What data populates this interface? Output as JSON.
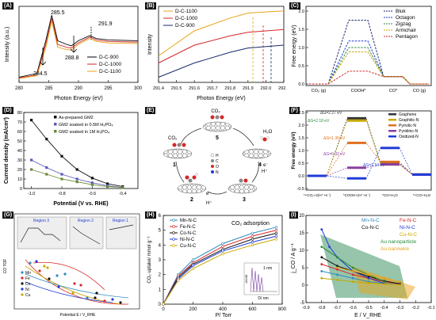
{
  "panels": [
    {
      "tag": "(A)"
    },
    {
      "tag": "(B)"
    },
    {
      "tag": "(C)"
    },
    {
      "tag": "(D)"
    },
    {
      "tag": "(E)"
    },
    {
      "tag": "(F)"
    },
    {
      "tag": "(G)"
    },
    {
      "tag": "(H)"
    },
    {
      "tag": "(I)"
    }
  ],
  "colors": {
    "black": "#000000",
    "red": "#d62728",
    "orange": "#e8a317",
    "blue": "#1f3bd6",
    "navy": "#1a2a6c",
    "purple": "#7a3fa0",
    "green": "#2a8a3a",
    "teal": "#2e8b57",
    "gold": "#c8a800"
  },
  "chart_data": [
    {
      "panel": "A",
      "type": "line",
      "xlabel": "Photon Energy (eV)",
      "ylabel": "Intensity (a.u.)",
      "xlim": [
        280,
        300
      ],
      "xticks": [
        280,
        285,
        290,
        295,
        300
      ],
      "series": [
        {
          "name": "D-C-900",
          "color": "#000000",
          "x": [
            280,
            283,
            284.5,
            285.5,
            286.5,
            288,
            288.8,
            290,
            291.9,
            293,
            295,
            300
          ],
          "y": [
            0.05,
            0.1,
            0.55,
            0.9,
            0.55,
            0.5,
            0.48,
            0.55,
            0.62,
            0.58,
            0.56,
            0.55
          ]
        },
        {
          "name": "D-C-1000",
          "color": "#d62728",
          "x": [
            280,
            283,
            284.5,
            285.5,
            286.5,
            288,
            288.8,
            290,
            291.9,
            293,
            295,
            300
          ],
          "y": [
            0.04,
            0.08,
            0.5,
            0.86,
            0.5,
            0.46,
            0.45,
            0.52,
            0.6,
            0.56,
            0.54,
            0.53
          ]
        },
        {
          "name": "D-C-1100",
          "color": "#e8a317",
          "x": [
            280,
            283,
            284.5,
            285.5,
            286.5,
            288,
            288.8,
            290,
            291.9,
            293,
            295,
            300
          ],
          "y": [
            0.03,
            0.07,
            0.45,
            0.82,
            0.46,
            0.43,
            0.42,
            0.5,
            0.58,
            0.54,
            0.52,
            0.51
          ]
        }
      ],
      "annotations": [
        "285.5",
        "284.5",
        "288.8",
        "291.9"
      ]
    },
    {
      "panel": "B",
      "type": "line",
      "xlabel": "Photon Energy (eV)",
      "ylabel": "Intensity",
      "xlim": [
        291.4,
        292.1
      ],
      "xticks": [
        "291.4",
        "291.5",
        "291.6",
        "291.7",
        "291.8",
        "291.9",
        "292.0",
        "292.1"
      ],
      "series": [
        {
          "name": "D-C-1100",
          "color": "#e8a317",
          "x": [
            291.4,
            291.6,
            291.8,
            291.9,
            292.1
          ],
          "y": [
            0.35,
            0.7,
            0.88,
            0.95,
            0.98
          ]
        },
        {
          "name": "D-C-1000",
          "color": "#d62728",
          "x": [
            291.4,
            291.6,
            291.8,
            291.9,
            292.1
          ],
          "y": [
            0.25,
            0.5,
            0.63,
            0.68,
            0.72
          ]
        },
        {
          "name": "D-C-900",
          "color": "#1a2a6c",
          "x": [
            291.4,
            291.6,
            291.8,
            291.9,
            292.1
          ],
          "y": [
            0.05,
            0.25,
            0.4,
            0.46,
            0.5
          ]
        }
      ]
    },
    {
      "panel": "C",
      "type": "line",
      "ylabel": "Free energy (eV)",
      "ylim": [
        0,
        2.0
      ],
      "yticks": [
        0,
        0.5,
        1.0,
        1.5,
        2.0
      ],
      "categories": [
        "CO₂ (g)",
        "COOH*",
        "CO*",
        "CO (g)"
      ],
      "series": [
        {
          "name": "Bluk",
          "color": "#1a2a6c",
          "values": [
            0,
            1.75,
            0.2,
            0
          ]
        },
        {
          "name": "Octagon",
          "color": "#1f3bd6",
          "values": [
            0,
            1.18,
            0.2,
            0
          ]
        },
        {
          "name": "Zigzag",
          "color": "#2a8a3a",
          "values": [
            0,
            1.0,
            0.2,
            0
          ]
        },
        {
          "name": "Armchair",
          "color": "#c8a800",
          "values": [
            0,
            0.88,
            0.2,
            0
          ]
        },
        {
          "name": "Pentagon",
          "color": "#d62728",
          "values": [
            0,
            0.35,
            0.2,
            0
          ]
        }
      ]
    },
    {
      "panel": "D",
      "type": "line",
      "xlabel": "Potential (V vs. RHE)",
      "ylabel": "Current density (mA/cm²)",
      "xlim": [
        -1.05,
        -0.3
      ],
      "ylim": [
        0,
        80
      ],
      "xticks": [
        "-1.0",
        "-0.8",
        "-0.6",
        "-0.4"
      ],
      "yticks": [
        0,
        10,
        20,
        30,
        40,
        50,
        60,
        70,
        80
      ],
      "series": [
        {
          "name": "As-prepared GM2",
          "color": "#111111",
          "x": [
            -1.0,
            -0.9,
            -0.8,
            -0.7,
            -0.6,
            -0.5,
            -0.4
          ],
          "y": [
            72,
            52,
            34,
            20,
            11,
            5,
            2
          ]
        },
        {
          "name": "GM2 soaked in 0.5M H₃PO₄",
          "color": "#5b5bb8",
          "x": [
            -1.0,
            -0.9,
            -0.8,
            -0.7,
            -0.6,
            -0.5,
            -0.4
          ],
          "y": [
            30,
            22,
            15,
            10,
            6,
            3,
            1
          ]
        },
        {
          "name": "GM2 soaked in 1M H₃PO₄",
          "color": "#6a8a3a",
          "x": [
            -1.0,
            -0.9,
            -0.8,
            -0.7,
            -0.6,
            -0.5,
            -0.4
          ],
          "y": [
            20,
            15,
            10,
            7,
            4,
            2,
            1
          ]
        }
      ]
    },
    {
      "panel": "F",
      "type": "line",
      "ylabel": "Free energy (eV)",
      "ylim": [
        -0.5,
        2.5
      ],
      "yticks": [
        -0.5,
        0,
        0.5,
        1.0,
        1.5,
        2.0,
        2.5
      ],
      "categories": [
        "*+CO₂+2(H⁺+e⁻)",
        "*COOH+(H⁺+e⁻)",
        "*CO+H₂O",
        "*+CO+H₂O"
      ],
      "series": [
        {
          "name": "Graphene",
          "color": "#333333",
          "values": [
            0,
            2.27,
            0.5,
            0.05
          ]
        },
        {
          "name": "Graphitic-N",
          "color": "#c8a800",
          "values": [
            0,
            2.18,
            0.45,
            0.05
          ]
        },
        {
          "name": "Pyrrolic-N",
          "color": "#e07020",
          "values": [
            0,
            1.3,
            0.55,
            0.05
          ]
        },
        {
          "name": "Pyridinic-N",
          "color": "#8a3fa0",
          "values": [
            0,
            0.32,
            0.45,
            0.05
          ]
        },
        {
          "name": "Oxidized-N",
          "color": "#1f3bd6",
          "values": [
            0,
            -0.1,
            1.1,
            0.05
          ]
        }
      ],
      "annotations": [
        "ΔG=2.27 eV",
        "ΔG=2.18 eV",
        "ΔG=1.30 eV",
        "ΔG=0.32 eV",
        "ΔG=1.10 eV"
      ]
    },
    {
      "panel": "G",
      "type": "scatter",
      "xlabel": "Potential E / V_RHE",
      "ylabel": "CO TOF",
      "series": [
        {
          "name": "Mn"
        },
        {
          "name": "Fe"
        },
        {
          "name": "Co"
        },
        {
          "name": "Ni"
        },
        {
          "name": "Cu"
        }
      ],
      "annotations": [
        "Region 1",
        "Region 2",
        "Region 3"
      ]
    },
    {
      "panel": "H",
      "type": "line",
      "title": "CO₂ adsorption",
      "xlabel": "P/ Torr",
      "ylabel": "CO₂ uptake/ mmol g⁻¹",
      "xlim": [
        0,
        800
      ],
      "ylim": [
        0,
        6
      ],
      "xticks": [
        0,
        200,
        400,
        600,
        800
      ],
      "yticks": [
        0,
        1,
        2,
        3,
        4,
        5,
        6
      ],
      "series": [
        {
          "name": "Mn-N-C",
          "color": "#2e8bc0",
          "x": [
            0,
            100,
            200,
            400,
            600,
            760
          ],
          "y": [
            0,
            2.0,
            3.0,
            4.1,
            4.8,
            5.2
          ]
        },
        {
          "name": "Fe-N-C",
          "color": "#d62728",
          "x": [
            0,
            100,
            200,
            400,
            600,
            760
          ],
          "y": [
            0,
            1.9,
            2.8,
            3.9,
            4.6,
            5.0
          ]
        },
        {
          "name": "Co-N-C",
          "color": "#111111",
          "x": [
            0,
            100,
            200,
            400,
            600,
            760
          ],
          "y": [
            0,
            1.8,
            2.7,
            3.7,
            4.4,
            4.8
          ]
        },
        {
          "name": "Ni-N-C",
          "color": "#1f3bd6",
          "x": [
            0,
            100,
            200,
            400,
            600,
            760
          ],
          "y": [
            0,
            1.7,
            2.6,
            3.6,
            4.2,
            4.6
          ]
        },
        {
          "name": "Cu-N-C",
          "color": "#c8a800",
          "x": [
            0,
            100,
            200,
            400,
            600,
            760
          ],
          "y": [
            0,
            1.6,
            2.4,
            3.4,
            4.0,
            4.4
          ]
        }
      ],
      "inset": {
        "xlabel": "D/ nm",
        "ylabel": "dV/dD",
        "annotation": "1 nm"
      }
    },
    {
      "panel": "I",
      "type": "line",
      "xlabel": "E / V_RHE",
      "ylabel": "j_CO / A g⁻¹",
      "xlim": [
        -0.9,
        -0.1
      ],
      "ylim": [
        -5,
        20
      ],
      "xticks": [
        "-0.9",
        "-0.8",
        "-0.7",
        "-0.6",
        "-0.5",
        "-0.4",
        "-0.3",
        "-0.2",
        "-0.1"
      ],
      "yticks": [
        -5,
        0,
        5,
        10,
        15,
        20
      ],
      "series": [
        {
          "name": "Mn-N-C",
          "color": "#2e8bc0",
          "x": [
            -0.8,
            -0.7,
            -0.6,
            -0.5,
            -0.4,
            -0.3
          ],
          "y": [
            4,
            3,
            2,
            1,
            0.5,
            0.1
          ]
        },
        {
          "name": "Fe-N-C",
          "color": "#d62728",
          "x": [
            -0.8,
            -0.7,
            -0.6,
            -0.5,
            -0.4,
            -0.3
          ],
          "y": [
            6,
            4.5,
            3,
            2,
            1,
            0.3
          ]
        },
        {
          "name": "Co-N-C",
          "color": "#111111",
          "x": [
            -0.8,
            -0.7,
            -0.6,
            -0.5,
            -0.4,
            -0.3
          ],
          "y": [
            8,
            5.5,
            4,
            2.5,
            1.2,
            0.4
          ]
        },
        {
          "name": "Ni-N-C",
          "color": "#1f3bd6",
          "x": [
            -0.8,
            -0.75,
            -0.7,
            -0.6,
            -0.5,
            -0.4
          ],
          "y": [
            16,
            11,
            8,
            4,
            2,
            0.5
          ]
        },
        {
          "name": "Cu-N-C",
          "color": "#c8a800",
          "x": [
            -0.8,
            -0.7,
            -0.6,
            -0.5,
            -0.4,
            -0.3
          ],
          "y": [
            2,
            1.5,
            1,
            0.6,
            0.3,
            0.1
          ]
        },
        {
          "name": "Au nanoparticle",
          "color": "#2a8a3a",
          "x": [
            -0.8,
            -0.7,
            -0.6,
            -0.5,
            -0.4
          ],
          "y": [
            11,
            8,
            5,
            3,
            1
          ]
        },
        {
          "name": "Au nanowire",
          "color": "#e8a317",
          "x": [
            -0.7,
            -0.6,
            -0.5,
            -0.4,
            -0.3
          ],
          "y": [
            5,
            4,
            3,
            2,
            1
          ]
        }
      ]
    }
  ],
  "diagram_E": {
    "labels": [
      "CO₂",
      "H₂O",
      "H⁺",
      "e⁻",
      "1",
      "2",
      "3",
      "4",
      "5",
      "H⁺",
      "e⁻",
      "H",
      "C",
      "O",
      "N"
    ]
  }
}
